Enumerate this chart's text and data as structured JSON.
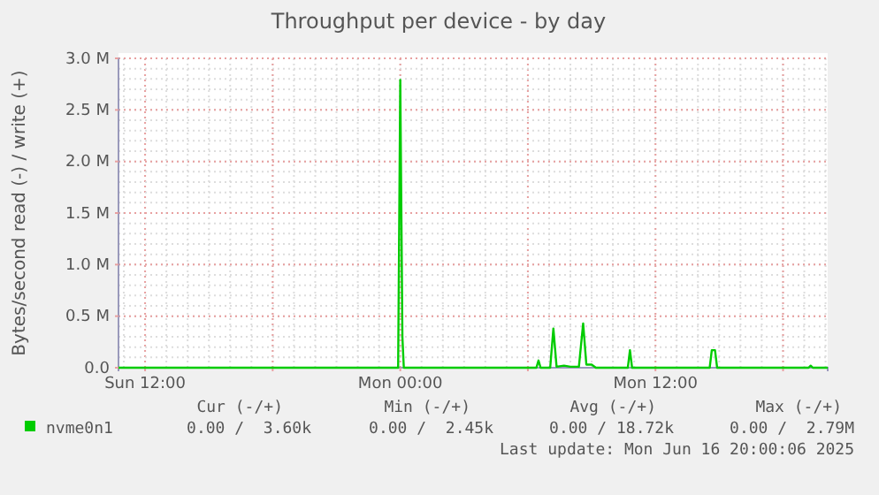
{
  "chart_data": {
    "type": "line",
    "title": "Throughput per device - by day",
    "ylabel": "Bytes/second read (-) / write (+)",
    "x": [
      "2025-06-15T10:45",
      "2025-06-15T23:54",
      "2025-06-16T00:00",
      "2025-06-16T00:06",
      "2025-06-16T00:10",
      "2025-06-16T06:24",
      "2025-06-16T06:30",
      "2025-06-16T06:36",
      "2025-06-16T07:03",
      "2025-06-16T07:12",
      "2025-06-16T07:21",
      "2025-06-16T07:42",
      "2025-06-16T08:00",
      "2025-06-16T08:24",
      "2025-06-16T08:36",
      "2025-06-16T08:45",
      "2025-06-16T09:00",
      "2025-06-16T09:12",
      "2025-06-16T10:42",
      "2025-06-16T10:48",
      "2025-06-16T10:54",
      "2025-06-16T14:33",
      "2025-06-16T14:39",
      "2025-06-16T14:48",
      "2025-06-16T14:54",
      "2025-06-16T19:12",
      "2025-06-16T19:18",
      "2025-06-16T19:24",
      "2025-06-16T20:06"
    ],
    "series": [
      {
        "name": "nvme0n1",
        "color": "#00cc00",
        "values": [
          0,
          0,
          2790000,
          300000,
          0,
          0,
          70000,
          0,
          0,
          380000,
          10000,
          20000,
          10000,
          10000,
          430000,
          30000,
          30000,
          0,
          0,
          170000,
          0,
          0,
          170000,
          170000,
          0,
          0,
          20000,
          0,
          0
        ]
      }
    ],
    "xlim": [
      "2025-06-15T10:45",
      "2025-06-16T20:06"
    ],
    "xticks": [
      {
        "value": "2025-06-15T12:00",
        "label": "Sun 12:00"
      },
      {
        "value": "2025-06-15T18:00",
        "label": null
      },
      {
        "value": "2025-06-16T00:00",
        "label": "Mon 00:00"
      },
      {
        "value": "2025-06-16T06:00",
        "label": null
      },
      {
        "value": "2025-06-16T12:00",
        "label": "Mon 12:00"
      },
      {
        "value": "2025-06-16T18:00",
        "label": null
      }
    ],
    "ylim": [
      0,
      3000000
    ],
    "yticks": [
      {
        "value": 0,
        "label": "0.0"
      },
      {
        "value": 500000,
        "label": "0.5 M"
      },
      {
        "value": 1000000,
        "label": "1.0 M"
      },
      {
        "value": 1500000,
        "label": "1.5 M"
      },
      {
        "value": 2000000,
        "label": "2.0 M"
      },
      {
        "value": 2500000,
        "label": "2.5 M"
      },
      {
        "value": 3000000,
        "label": "3.0 M"
      }
    ],
    "grid": true,
    "legend": "bottom",
    "line_style": "solid",
    "marker": "none",
    "annotations": [
      "Cur (-/+)",
      "Min (-/+)",
      "Avg (-/+)",
      "Max (-/+)",
      "0.00 /  3.60k",
      "0.00 /  2.45k",
      "0.00 / 18.72k",
      "0.00 /  2.79M",
      "Last update: Mon Jun 16 20:00:06 2025"
    ]
  }
}
